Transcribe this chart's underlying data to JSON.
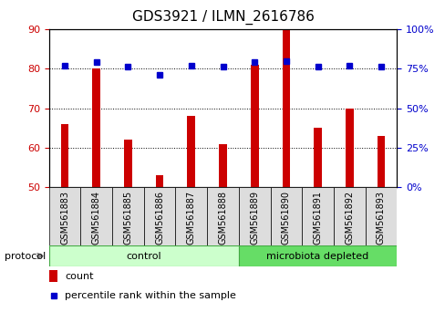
{
  "title": "GDS3921 / ILMN_2616786",
  "categories": [
    "GSM561883",
    "GSM561884",
    "GSM561885",
    "GSM561886",
    "GSM561887",
    "GSM561888",
    "GSM561889",
    "GSM561890",
    "GSM561891",
    "GSM561892",
    "GSM561893"
  ],
  "bar_values": [
    66,
    80,
    62,
    53,
    68,
    61,
    81,
    90,
    65,
    70,
    63
  ],
  "dot_values": [
    77,
    79,
    76,
    71,
    77,
    76,
    79,
    80,
    76,
    77,
    76
  ],
  "bar_color": "#cc0000",
  "dot_color": "#0000cc",
  "ylim_left": [
    50,
    90
  ],
  "ylim_right": [
    0,
    100
  ],
  "yticks_left": [
    50,
    60,
    70,
    80,
    90
  ],
  "yticks_right": [
    0,
    25,
    50,
    75,
    100
  ],
  "protocol_groups": [
    {
      "label": "control",
      "start": 0,
      "end": 5,
      "color": "#ccffcc",
      "edge_color": "#44aa44"
    },
    {
      "label": "microbiota depleted",
      "start": 6,
      "end": 10,
      "color": "#66dd66",
      "edge_color": "#44aa44"
    }
  ],
  "legend_bar_label": "count",
  "legend_dot_label": "percentile rank within the sample",
  "protocol_label": "protocol",
  "background_color": "#ffffff",
  "tick_label_color_left": "#cc0000",
  "tick_label_color_right": "#0000cc",
  "title_fontsize": 11,
  "bar_width": 0.25,
  "xticklabel_bg": "#dddddd",
  "xticklabel_fontsize": 7
}
